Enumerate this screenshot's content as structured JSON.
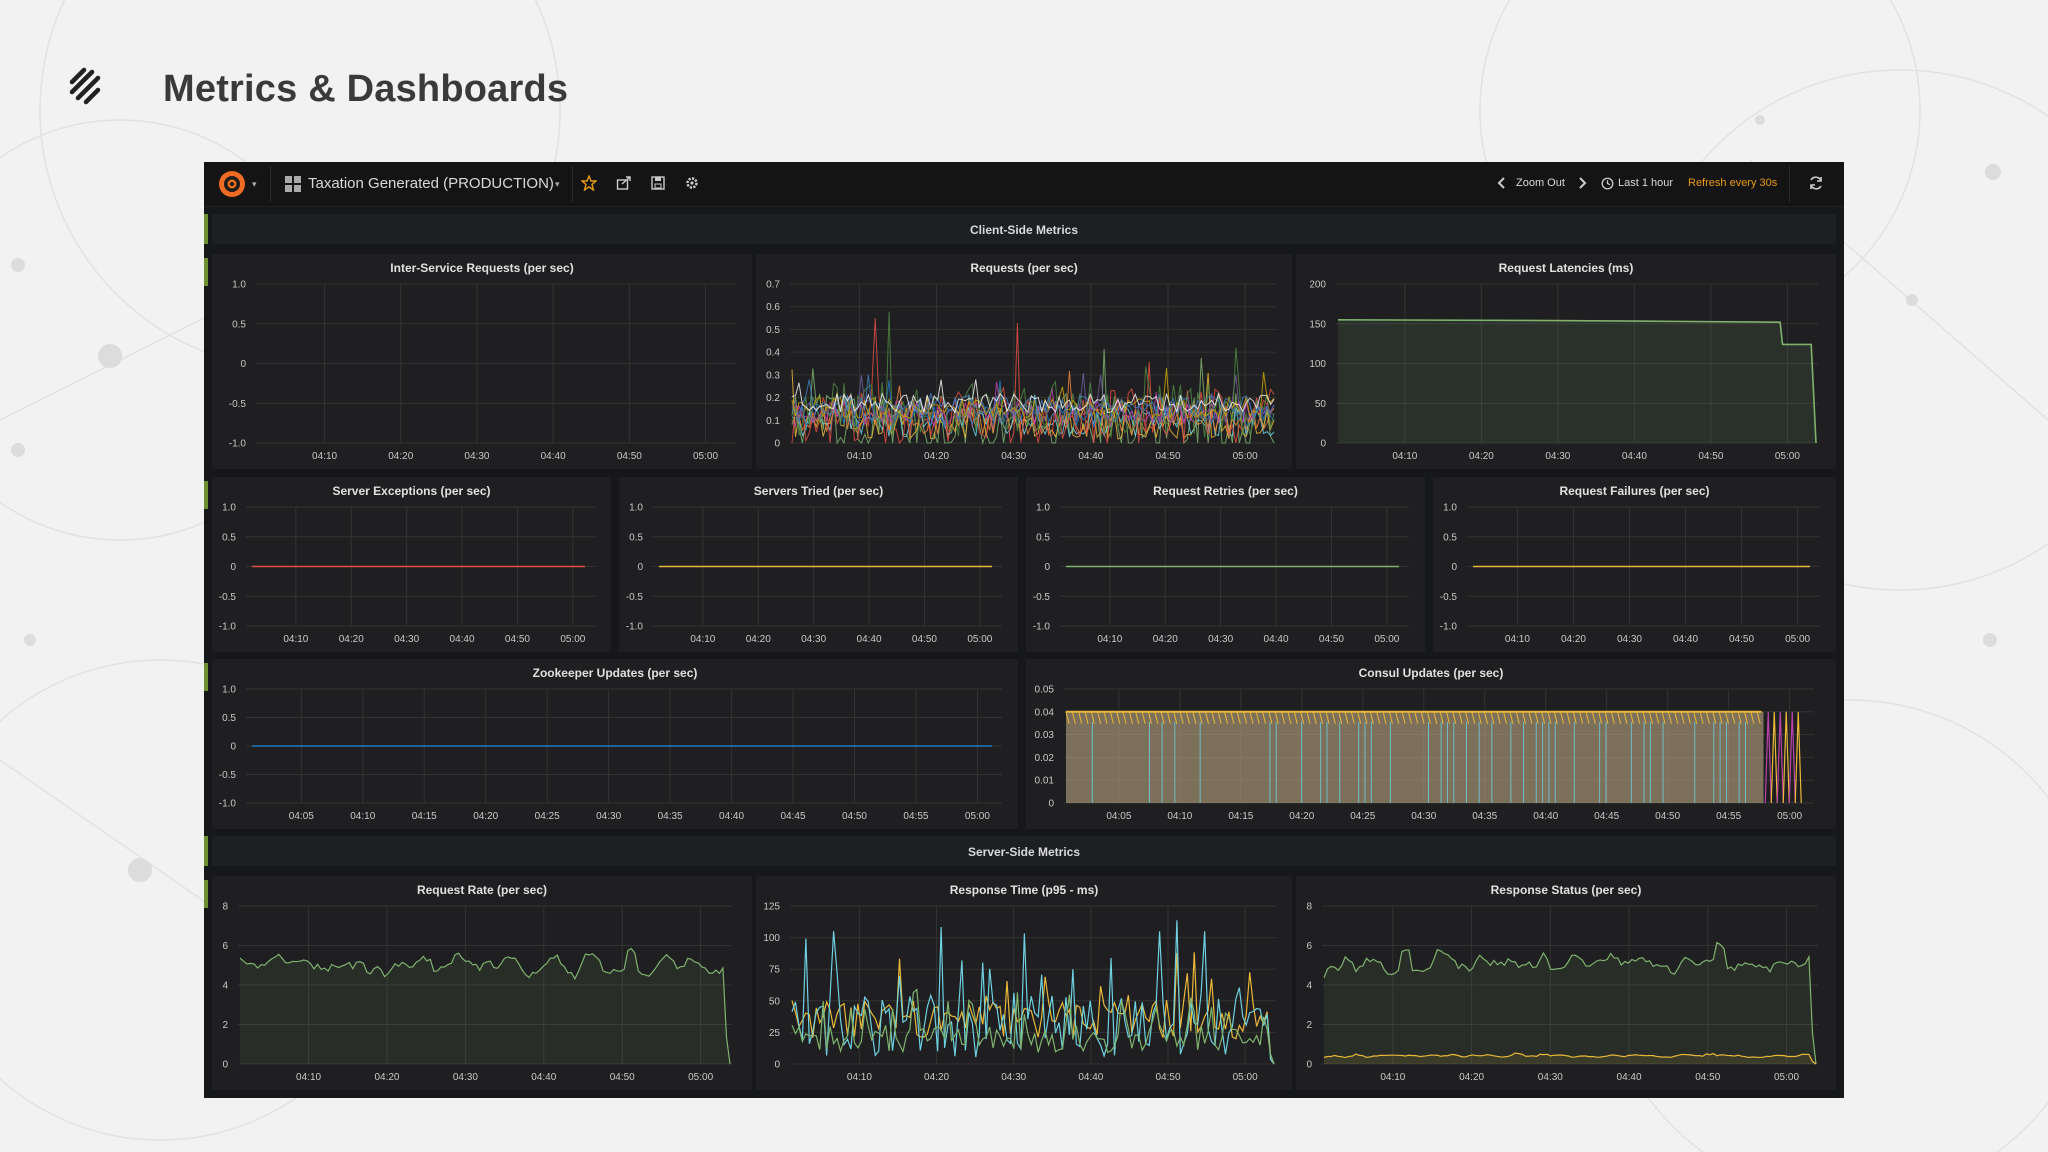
{
  "slide": {
    "title": "Metrics & Dashboards",
    "logo_icon": "squarespace-logo"
  },
  "nav": {
    "logo_icon": "grafana-logo",
    "dashboard_title": "Taxation Generated (PRODUCTION)",
    "zoom_out_label": "Zoom Out",
    "time_range": "Last 1 hour",
    "refresh_label": "Refresh every 30s",
    "icons": [
      "star-icon",
      "share-icon",
      "save-icon",
      "settings-icon",
      "chevron-left-icon",
      "chevron-right-icon",
      "clock-icon",
      "refresh-icon"
    ]
  },
  "rows": [
    {
      "title": "Client-Side Metrics"
    },
    {
      "title": "Server-Side Metrics"
    }
  ],
  "colors": {
    "accent": "#eb9a14",
    "row_marker": "#6c8f32",
    "background": "#161719",
    "panel": "#1f1f21"
  },
  "chart_data": [
    {
      "id": "inter-service-requests",
      "type": "line",
      "title": "Inter-Service Requests (per sec)",
      "x_ticks": [
        "04:10",
        "04:20",
        "04:30",
        "04:40",
        "04:50",
        "05:00"
      ],
      "y_ticks": [
        "1.0",
        "0.5",
        "0",
        "-0.5",
        "-1.0"
      ],
      "ylim": [
        -1,
        1
      ],
      "series": []
    },
    {
      "id": "requests",
      "type": "line",
      "title": "Requests (per sec)",
      "x_ticks": [
        "04:10",
        "04:20",
        "04:30",
        "04:40",
        "04:50",
        "05:00"
      ],
      "y_ticks": [
        "0.7",
        "0.6",
        "0.5",
        "0.4",
        "0.3",
        "0.2",
        "0.1",
        "0"
      ],
      "ylim": [
        0,
        0.7
      ],
      "series_count": 12,
      "series_level": 0.15,
      "series_peak": 0.6,
      "colors": [
        "#7eb26d",
        "#eab839",
        "#6ed0e0",
        "#ef843c",
        "#e24d42",
        "#1f78c1",
        "#ba43a9",
        "#705da0",
        "#508642",
        "#cca300",
        "#447ebc",
        "#f2f2f2"
      ]
    },
    {
      "id": "request-latencies",
      "type": "area",
      "title": "Request Latencies (ms)",
      "x_ticks": [
        "04:10",
        "04:20",
        "04:30",
        "04:40",
        "04:50",
        "05:00"
      ],
      "y_ticks": [
        "200",
        "150",
        "100",
        "50",
        "0"
      ],
      "ylim": [
        0,
        200
      ],
      "series": [
        {
          "color": "#7eb26d",
          "points": [
            [
              0,
              155
            ],
            [
              0.45,
              154
            ],
            [
              0.7,
              153
            ],
            [
              0.925,
              152
            ],
            [
              0.93,
              124
            ],
            [
              0.99,
              124
            ],
            [
              1.0,
              0
            ]
          ]
        }
      ]
    },
    {
      "id": "server-exceptions",
      "type": "line",
      "title": "Server Exceptions (per sec)",
      "x_ticks": [
        "04:10",
        "04:20",
        "04:30",
        "04:40",
        "04:50",
        "05:00"
      ],
      "y_ticks": [
        "1.0",
        "0.5",
        "0",
        "-0.5",
        "-1.0"
      ],
      "ylim": [
        -1,
        1
      ],
      "series": [
        {
          "color": "#e24d42",
          "value": 0
        }
      ]
    },
    {
      "id": "servers-tried",
      "type": "line",
      "title": "Servers Tried (per sec)",
      "x_ticks": [
        "04:10",
        "04:20",
        "04:30",
        "04:40",
        "04:50",
        "05:00"
      ],
      "y_ticks": [
        "1.0",
        "0.5",
        "0",
        "-0.5",
        "-1.0"
      ],
      "ylim": [
        -1,
        1
      ],
      "series": [
        {
          "color": "#eab839",
          "value": 0
        }
      ]
    },
    {
      "id": "request-retries",
      "type": "line",
      "title": "Request Retries (per sec)",
      "x_ticks": [
        "04:10",
        "04:20",
        "04:30",
        "04:40",
        "04:50",
        "05:00"
      ],
      "y_ticks": [
        "1.0",
        "0.5",
        "0",
        "-0.5",
        "-1.0"
      ],
      "ylim": [
        -1,
        1
      ],
      "series": [
        {
          "color": "#7eb26d",
          "value": 0
        }
      ]
    },
    {
      "id": "request-failures",
      "type": "line",
      "title": "Request Failures (per sec)",
      "x_ticks": [
        "04:10",
        "04:20",
        "04:30",
        "04:40",
        "04:50",
        "05:00"
      ],
      "y_ticks": [
        "1.0",
        "0.5",
        "0",
        "-0.5",
        "-1.0"
      ],
      "ylim": [
        -1,
        1
      ],
      "series": [
        {
          "color": "#eab839",
          "value": 0
        }
      ]
    },
    {
      "id": "zookeeper-updates",
      "type": "line",
      "title": "Zookeeper Updates (per sec)",
      "x_ticks": [
        "04:05",
        "04:10",
        "04:15",
        "04:20",
        "04:25",
        "04:30",
        "04:35",
        "04:40",
        "04:45",
        "04:50",
        "04:55",
        "05:00"
      ],
      "y_ticks": [
        "1.0",
        "0.5",
        "0",
        "-0.5",
        "-1.0"
      ],
      "ylim": [
        -1,
        1
      ],
      "series": [
        {
          "color": "#1f78c1",
          "value": 0
        }
      ]
    },
    {
      "id": "consul-updates",
      "type": "area",
      "title": "Consul Updates (per sec)",
      "x_ticks": [
        "04:05",
        "04:10",
        "04:15",
        "04:20",
        "04:25",
        "04:30",
        "04:35",
        "04:40",
        "04:45",
        "04:50",
        "04:55",
        "05:00"
      ],
      "y_ticks": [
        "0.05",
        "0.04",
        "0.03",
        "0.02",
        "0.01",
        "0"
      ],
      "ylim": [
        0,
        0.05
      ],
      "level": 0.04,
      "colors": [
        "#eab839",
        "#6ed0e0",
        "#ba43a9",
        "#c9b28a"
      ]
    },
    {
      "id": "request-rate",
      "type": "area",
      "title": "Request Rate (per sec)",
      "x_ticks": [
        "04:10",
        "04:20",
        "04:30",
        "04:40",
        "04:50",
        "05:00"
      ],
      "y_ticks": [
        "8",
        "6",
        "4",
        "2",
        "0"
      ],
      "ylim": [
        0,
        8
      ],
      "series": [
        {
          "color": "#7eb26d",
          "base": 5,
          "peak": 7.8
        }
      ]
    },
    {
      "id": "response-time",
      "type": "line",
      "title": "Response Time (p95 - ms)",
      "x_ticks": [
        "04:10",
        "04:20",
        "04:30",
        "04:40",
        "04:50",
        "05:00"
      ],
      "y_ticks": [
        "125",
        "100",
        "75",
        "50",
        "25",
        "0"
      ],
      "ylim": [
        0,
        125
      ],
      "series": [
        {
          "color": "#eab839",
          "base": 35,
          "peak": 90
        },
        {
          "color": "#6ed0e0",
          "base": 30,
          "peak": 120
        },
        {
          "color": "#7eb26d",
          "base": 20,
          "peak": 60
        }
      ]
    },
    {
      "id": "response-status",
      "type": "area",
      "title": "Response Status (per sec)",
      "x_ticks": [
        "04:10",
        "04:20",
        "04:30",
        "04:40",
        "04:50",
        "05:00"
      ],
      "y_ticks": [
        "8",
        "6",
        "4",
        "2",
        "0"
      ],
      "ylim": [
        0,
        8
      ],
      "series": [
        {
          "color": "#7eb26d",
          "base": 5,
          "peak": 7.6
        },
        {
          "color": "#eab839",
          "base": 0.4,
          "peak": 0.8
        }
      ]
    }
  ]
}
